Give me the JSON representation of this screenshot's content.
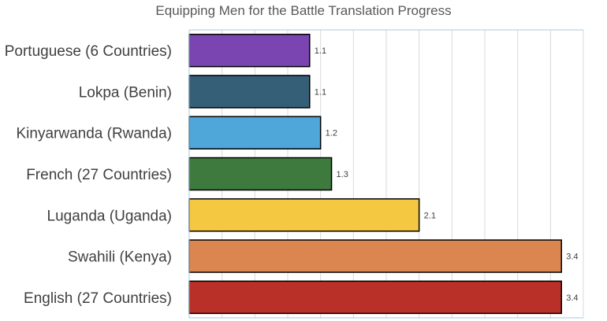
{
  "chart_data": {
    "type": "bar",
    "orientation": "horizontal",
    "title": "Equipping Men for the Battle Translation Progress",
    "xlabel": "",
    "ylabel": "",
    "xlim": [
      0,
      3.6
    ],
    "grid": true,
    "legend": "none",
    "categories": [
      "Portuguese (6 Countries)",
      "Lokpa (Benin)",
      "Kinyarwanda (Rwanda)",
      "French (27 Countries)",
      "Luganda (Uganda)",
      "Swahili (Kenya)",
      "English (27 Countries)"
    ],
    "values": [
      1.1,
      1.1,
      1.2,
      1.3,
      2.1,
      3.4,
      3.4
    ],
    "colors": [
      "#7a45b0",
      "#355f77",
      "#4ea7d8",
      "#3e7a3e",
      "#f5c842",
      "#db8651",
      "#b83028"
    ],
    "bar_border_color": "#000000",
    "grid_color": "#d9d9d9",
    "axis_color": "#a6c8e0"
  }
}
